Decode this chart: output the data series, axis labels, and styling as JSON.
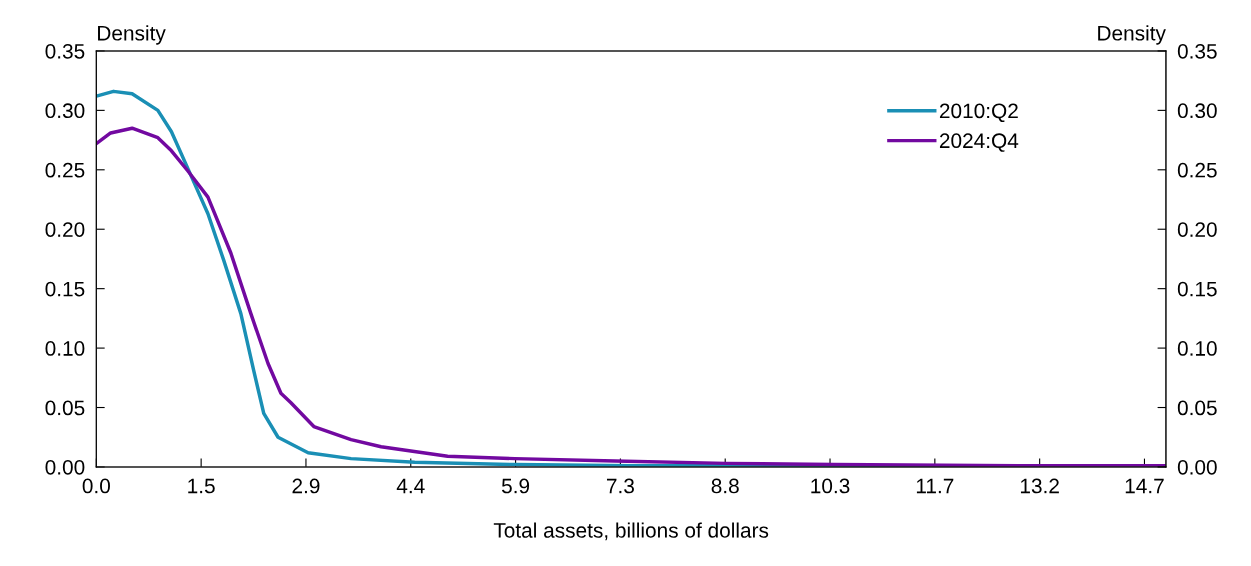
{
  "chart_data": {
    "type": "line",
    "xlabel": "Total assets, billions of dollars",
    "ylabel": "Density",
    "y2label": "Density",
    "xlim": [
      0,
      14.95
    ],
    "xticks": [
      {
        "value": 0,
        "label": "0.0"
      },
      {
        "value": 1.465,
        "label": "1.5"
      },
      {
        "value": 2.93,
        "label": "2.9"
      },
      {
        "value": 4.395,
        "label": "4.4"
      },
      {
        "value": 5.86,
        "label": "5.9"
      },
      {
        "value": 7.325,
        "label": "7.3"
      },
      {
        "value": 8.79,
        "label": "8.8"
      },
      {
        "value": 10.255,
        "label": "10.3"
      },
      {
        "value": 11.72,
        "label": "11.7"
      },
      {
        "value": 13.185,
        "label": "13.2"
      },
      {
        "value": 14.65,
        "label": "14.7"
      }
    ],
    "ylim": [
      0,
      0.35
    ],
    "yticks": [
      {
        "value": 0,
        "label": "0.00"
      },
      {
        "value": 0.05,
        "label": "0.05"
      },
      {
        "value": 0.1,
        "label": "0.10"
      },
      {
        "value": 0.15,
        "label": "0.15"
      },
      {
        "value": 0.2,
        "label": "0.20"
      },
      {
        "value": 0.25,
        "label": "0.25"
      },
      {
        "value": 0.3,
        "label": "0.30"
      },
      {
        "value": 0.35,
        "label": "0.35"
      }
    ],
    "y2lim": [
      0,
      0.35
    ],
    "y2ticks": [
      {
        "value": 0,
        "label": "0.00"
      },
      {
        "value": 0.05,
        "label": "0.05"
      },
      {
        "value": 0.1,
        "label": "0.10"
      },
      {
        "value": 0.15,
        "label": "0.15"
      },
      {
        "value": 0.2,
        "label": "0.20"
      },
      {
        "value": 0.25,
        "label": "0.25"
      },
      {
        "value": 0.3,
        "label": "0.30"
      },
      {
        "value": 0.35,
        "label": "0.35"
      }
    ],
    "grid": false,
    "legend": "top right",
    "series": [
      {
        "name": "2010:Q2",
        "color": "#1a8fb5",
        "x": [
          0,
          0.24,
          0.5,
          0.86,
          1.05,
          1.28,
          1.56,
          1.78,
          2.02,
          2.2,
          2.34,
          2.54,
          2.96,
          3.56,
          4.45,
          5.85,
          7.5,
          10,
          12.5,
          14.95
        ],
        "values": [
          0.312,
          0.316,
          0.314,
          0.3,
          0.282,
          0.251,
          0.213,
          0.174,
          0.129,
          0.081,
          0.045,
          0.025,
          0.012,
          0.007,
          0.004,
          0.002,
          0.001,
          0.001,
          0.001,
          0.001
        ]
      },
      {
        "name": "2024:Q4",
        "color": "#7209a0",
        "x": [
          0,
          0.2,
          0.5,
          0.86,
          1.05,
          1.28,
          1.56,
          1.88,
          2.16,
          2.4,
          2.58,
          2.72,
          3.04,
          3.56,
          3.98,
          4.91,
          5.85,
          7.25,
          8.8,
          10.3,
          13.2,
          14.95
        ],
        "values": [
          0.272,
          0.281,
          0.285,
          0.277,
          0.266,
          0.249,
          0.227,
          0.18,
          0.129,
          0.087,
          0.062,
          0.054,
          0.034,
          0.023,
          0.017,
          0.009,
          0.007,
          0.005,
          0.003,
          0.002,
          0.001,
          0.001
        ]
      }
    ]
  }
}
